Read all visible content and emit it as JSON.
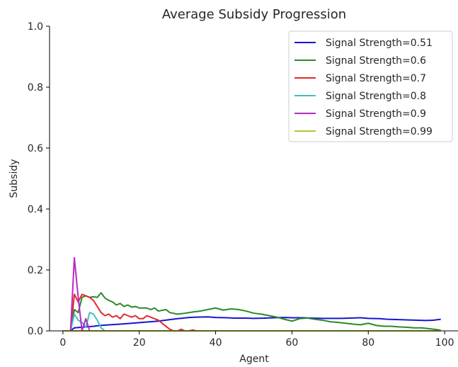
{
  "chart_data": {
    "type": "line",
    "title": "Average Subsidy Progression",
    "xlabel": "Agent",
    "ylabel": "Subsidy",
    "xlim": [
      -3.5,
      103.5
    ],
    "ylim": [
      0,
      1.0
    ],
    "xticks": [
      0,
      20,
      40,
      60,
      80,
      100
    ],
    "yticks": [
      0.0,
      0.2,
      0.4,
      0.6,
      0.8,
      1.0
    ],
    "xtick_labels": [
      "0",
      "20",
      "40",
      "60",
      "80",
      "100"
    ],
    "ytick_labels": [
      "0.0",
      "0.2",
      "0.4",
      "0.6",
      "0.8",
      "1.0"
    ],
    "grid": false,
    "legend_position": "top-right",
    "series": [
      {
        "name": "Signal Strength=0.51",
        "color": "#1515d6",
        "points": [
          [
            0,
            0
          ],
          [
            1,
            0
          ],
          [
            2,
            0
          ],
          [
            3,
            0.01
          ],
          [
            5,
            0.012
          ],
          [
            8,
            0.015
          ],
          [
            10,
            0.018
          ],
          [
            15,
            0.022
          ],
          [
            18,
            0.025
          ],
          [
            20,
            0.027
          ],
          [
            25,
            0.032
          ],
          [
            28,
            0.037
          ],
          [
            30,
            0.04
          ],
          [
            33,
            0.044
          ],
          [
            35,
            0.045
          ],
          [
            38,
            0.046
          ],
          [
            40,
            0.044
          ],
          [
            43,
            0.043
          ],
          [
            45,
            0.042
          ],
          [
            48,
            0.042
          ],
          [
            50,
            0.041
          ],
          [
            53,
            0.042
          ],
          [
            55,
            0.043
          ],
          [
            58,
            0.044
          ],
          [
            60,
            0.043
          ],
          [
            63,
            0.043
          ],
          [
            65,
            0.042
          ],
          [
            68,
            0.041
          ],
          [
            70,
            0.041
          ],
          [
            73,
            0.041
          ],
          [
            75,
            0.042
          ],
          [
            78,
            0.043
          ],
          [
            80,
            0.041
          ],
          [
            83,
            0.04
          ],
          [
            85,
            0.038
          ],
          [
            88,
            0.037
          ],
          [
            90,
            0.036
          ],
          [
            93,
            0.035
          ],
          [
            95,
            0.034
          ],
          [
            97,
            0.035
          ],
          [
            99,
            0.038
          ]
        ]
      },
      {
        "name": "Signal Strength=0.6",
        "color": "#2a8a2a",
        "points": [
          [
            0,
            0
          ],
          [
            1,
            0
          ],
          [
            2,
            0
          ],
          [
            3,
            0.07
          ],
          [
            4,
            0.06
          ],
          [
            5,
            0.11
          ],
          [
            6,
            0.115
          ],
          [
            7,
            0.11
          ],
          [
            8,
            0.112
          ],
          [
            9,
            0.11
          ],
          [
            10,
            0.125
          ],
          [
            11,
            0.108
          ],
          [
            12,
            0.1
          ],
          [
            13,
            0.095
          ],
          [
            14,
            0.085
          ],
          [
            15,
            0.09
          ],
          [
            16,
            0.08
          ],
          [
            17,
            0.085
          ],
          [
            18,
            0.078
          ],
          [
            19,
            0.08
          ],
          [
            20,
            0.075
          ],
          [
            22,
            0.075
          ],
          [
            23,
            0.07
          ],
          [
            24,
            0.075
          ],
          [
            25,
            0.065
          ],
          [
            27,
            0.07
          ],
          [
            28,
            0.06
          ],
          [
            30,
            0.055
          ],
          [
            32,
            0.058
          ],
          [
            34,
            0.062
          ],
          [
            36,
            0.065
          ],
          [
            38,
            0.07
          ],
          [
            40,
            0.075
          ],
          [
            42,
            0.068
          ],
          [
            44,
            0.072
          ],
          [
            46,
            0.07
          ],
          [
            48,
            0.065
          ],
          [
            50,
            0.058
          ],
          [
            52,
            0.055
          ],
          [
            54,
            0.05
          ],
          [
            56,
            0.045
          ],
          [
            58,
            0.038
          ],
          [
            60,
            0.032
          ],
          [
            62,
            0.04
          ],
          [
            64,
            0.042
          ],
          [
            66,
            0.038
          ],
          [
            68,
            0.035
          ],
          [
            70,
            0.03
          ],
          [
            72,
            0.028
          ],
          [
            74,
            0.025
          ],
          [
            76,
            0.022
          ],
          [
            78,
            0.02
          ],
          [
            80,
            0.025
          ],
          [
            82,
            0.018
          ],
          [
            84,
            0.015
          ],
          [
            86,
            0.015
          ],
          [
            88,
            0.013
          ],
          [
            90,
            0.012
          ],
          [
            92,
            0.01
          ],
          [
            94,
            0.01
          ],
          [
            96,
            0.007
          ],
          [
            98,
            0.004
          ],
          [
            99,
            0.002
          ]
        ]
      },
      {
        "name": "Signal Strength=0.7",
        "color": "#e02a2a",
        "points": [
          [
            0,
            0
          ],
          [
            1,
            0
          ],
          [
            2,
            0
          ],
          [
            3,
            0.12
          ],
          [
            4,
            0.095
          ],
          [
            5,
            0.12
          ],
          [
            6,
            0.115
          ],
          [
            7,
            0.11
          ],
          [
            8,
            0.1
          ],
          [
            9,
            0.08
          ],
          [
            10,
            0.06
          ],
          [
            11,
            0.05
          ],
          [
            12,
            0.055
          ],
          [
            13,
            0.045
          ],
          [
            14,
            0.05
          ],
          [
            15,
            0.04
          ],
          [
            16,
            0.055
          ],
          [
            17,
            0.05
          ],
          [
            18,
            0.045
          ],
          [
            19,
            0.05
          ],
          [
            20,
            0.04
          ],
          [
            21,
            0.04
          ],
          [
            22,
            0.05
          ],
          [
            23,
            0.045
          ],
          [
            24,
            0.04
          ],
          [
            25,
            0.035
          ],
          [
            26,
            0.025
          ],
          [
            27,
            0.015
          ],
          [
            28,
            0.005
          ],
          [
            29,
            0
          ],
          [
            30,
            0
          ],
          [
            31,
            0.005
          ],
          [
            32,
            0
          ],
          [
            33,
            0
          ],
          [
            34,
            0.003
          ],
          [
            35,
            0
          ]
        ]
      },
      {
        "name": "Signal Strength=0.8",
        "color": "#40c0c0",
        "points": [
          [
            0,
            0
          ],
          [
            1,
            0
          ],
          [
            2,
            0
          ],
          [
            3,
            0.055
          ],
          [
            4,
            0.035
          ],
          [
            5,
            0.028
          ],
          [
            6,
            0.012
          ],
          [
            7,
            0.06
          ],
          [
            8,
            0.055
          ],
          [
            9,
            0.035
          ],
          [
            10,
            0.01
          ],
          [
            11,
            0
          ]
        ]
      },
      {
        "name": "Signal Strength=0.9",
        "color": "#b828c8",
        "points": [
          [
            0,
            0
          ],
          [
            1,
            0
          ],
          [
            2,
            0
          ],
          [
            3,
            0.24
          ],
          [
            4,
            0.11
          ],
          [
            5,
            0
          ],
          [
            6,
            0.04
          ],
          [
            7,
            0
          ],
          [
            8,
            0
          ]
        ]
      },
      {
        "name": "Signal Strength=0.99",
        "color": "#b5c435",
        "points": [
          [
            0,
            0
          ],
          [
            1,
            0
          ],
          [
            2,
            0
          ],
          [
            3,
            0
          ],
          [
            10,
            0
          ],
          [
            20,
            0
          ],
          [
            30,
            0
          ],
          [
            40,
            0
          ],
          [
            50,
            0
          ],
          [
            60,
            0
          ],
          [
            70,
            0
          ],
          [
            80,
            0
          ],
          [
            90,
            0
          ],
          [
            99,
            0
          ]
        ]
      }
    ]
  }
}
